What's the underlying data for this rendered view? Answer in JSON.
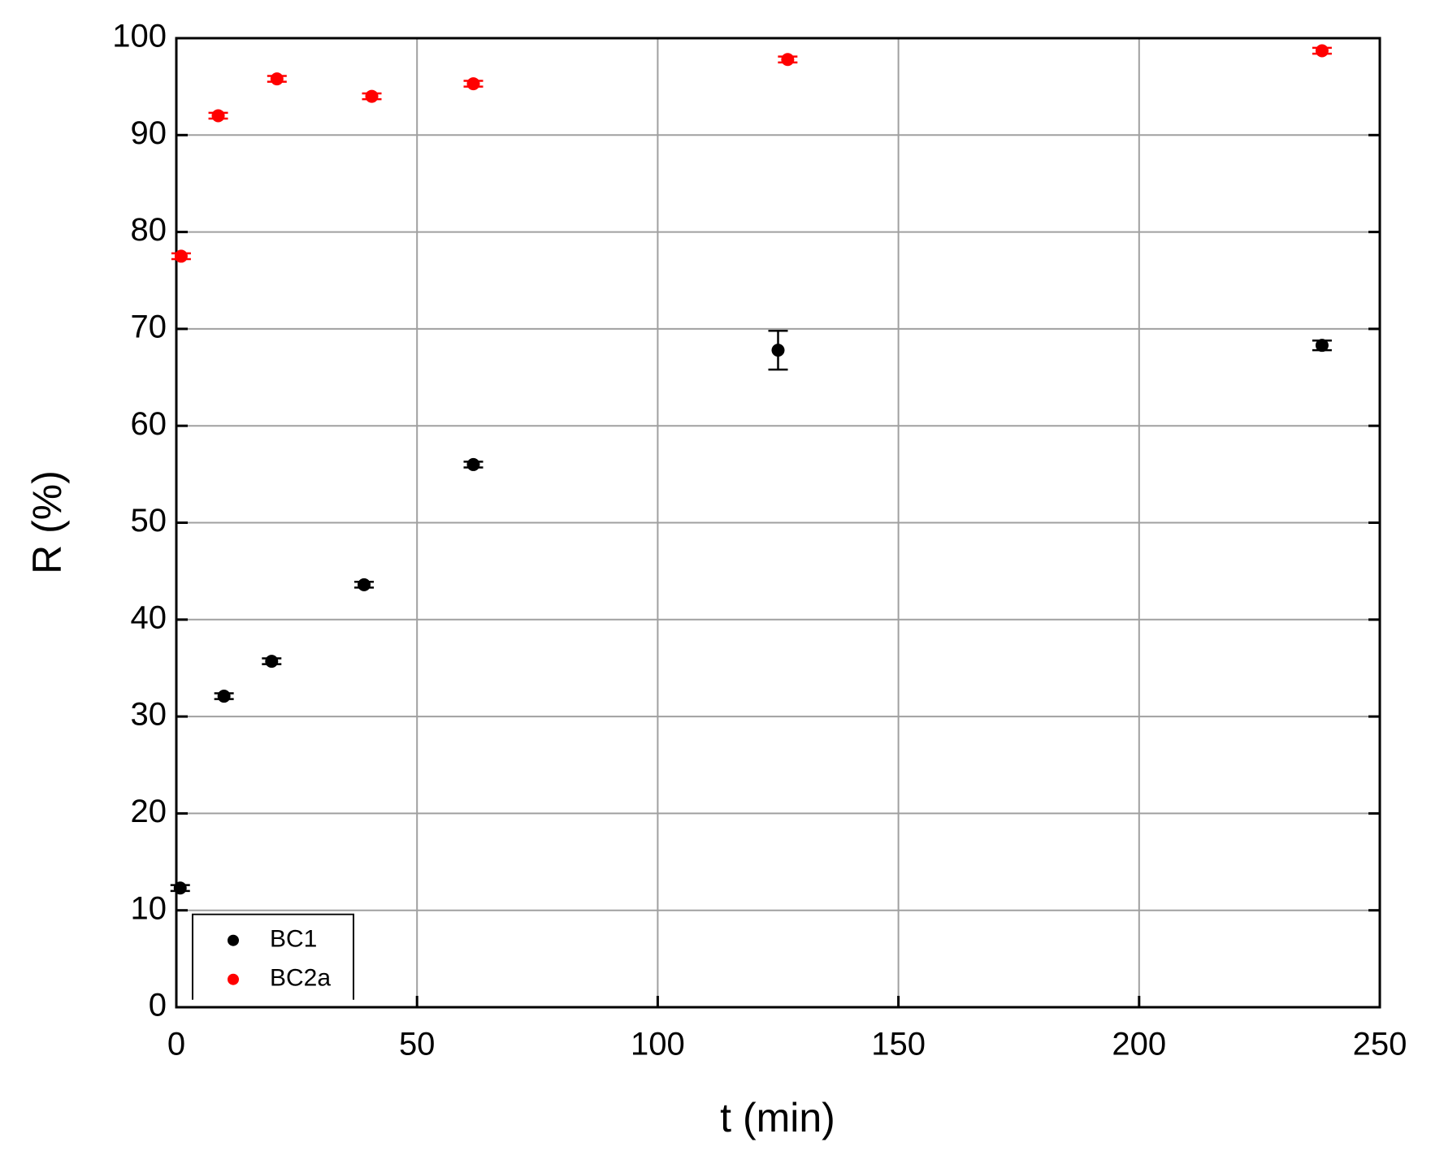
{
  "chart_data": {
    "type": "scatter",
    "x_label": "t (min)",
    "y_label": "R (%)",
    "xlim": [
      0,
      250
    ],
    "ylim": [
      0,
      100
    ],
    "xticks": [
      0,
      50,
      100,
      150,
      200,
      250
    ],
    "yticks": [
      0,
      10,
      20,
      30,
      40,
      50,
      60,
      70,
      80,
      90,
      100
    ],
    "grid": true,
    "legend": "lower left",
    "series": [
      {
        "name": "BC1",
        "color": "#000000",
        "x": [
          0.8,
          9.9,
          19.8,
          39,
          61.7,
          125,
          238
        ],
        "values": [
          12.3,
          32.1,
          35.7,
          43.6,
          56.0,
          67.8,
          68.3
        ],
        "errors": [
          0.3,
          0.3,
          0.3,
          0.3,
          0.3,
          2.0,
          0.5
        ]
      },
      {
        "name": "BC2a",
        "color": "#ff0000",
        "x": [
          1,
          8.7,
          20.9,
          40.6,
          61.7,
          127,
          238
        ],
        "values": [
          77.5,
          92.0,
          95.8,
          94.0,
          95.3,
          97.8,
          98.7
        ],
        "errors": [
          0.3,
          0.3,
          0.3,
          0.3,
          0.3,
          0.3,
          0.3
        ]
      }
    ]
  }
}
